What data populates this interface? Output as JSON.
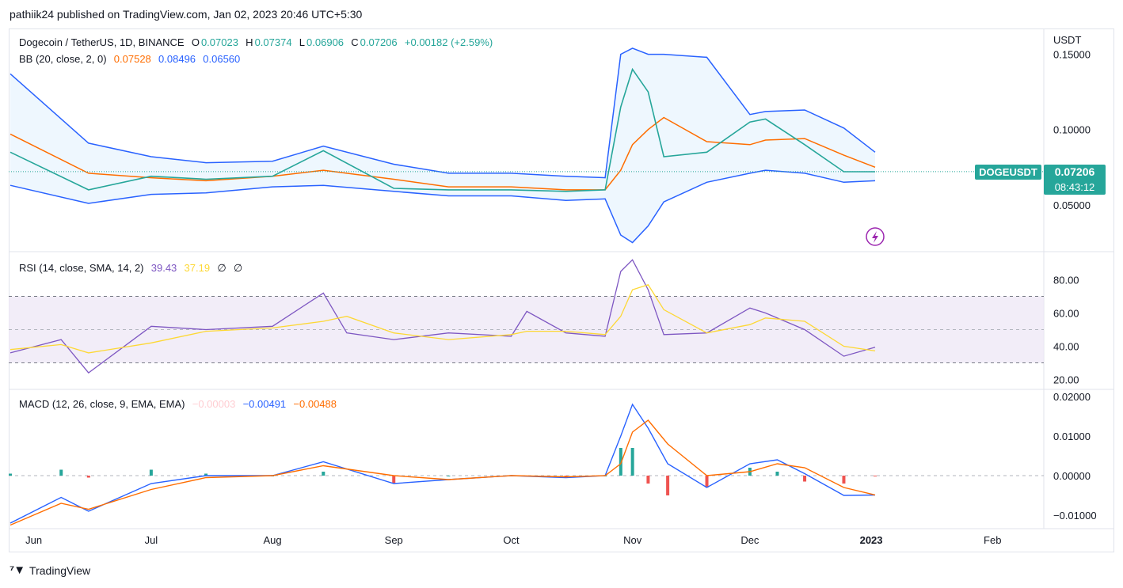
{
  "header": {
    "publisher": "pathiik24 published on TradingView.com, Jan 02, 2023 20:46 UTC+5:30"
  },
  "main_legend": {
    "symbol": "Dogecoin / TetherUS, 1D, BINANCE",
    "o_label": "O",
    "o": "0.07023",
    "h_label": "H",
    "h": "0.07374",
    "l_label": "L",
    "l": "0.06906",
    "c_label": "C",
    "c": "0.07206",
    "change": "+0.00182 (+2.59%)"
  },
  "bb_legend": {
    "label": "BB (20, close, 2, 0)",
    "mid": "0.07528",
    "upper": "0.08496",
    "lower": "0.06560"
  },
  "rsi_legend": {
    "label": "RSI (14, close, SMA, 14, 2)",
    "rsi": "39.43",
    "sma": "37.19",
    "a": "∅",
    "b": "∅"
  },
  "macd_legend": {
    "label": "MACD (12, 26, close, 9, EMA, EMA)",
    "hist": "−0.00003",
    "macd": "−0.00491",
    "signal": "−0.00488"
  },
  "price_axis": {
    "unit": "USDT",
    "ticks": [
      "0.15000",
      "0.10000",
      "0.05000"
    ]
  },
  "rsi_axis": {
    "ticks": [
      "80.00",
      "60.00",
      "40.00",
      "20.00"
    ]
  },
  "macd_axis": {
    "ticks": [
      "0.02000",
      "0.01000",
      "0.00000",
      "−0.01000"
    ]
  },
  "time_axis": {
    "labels": [
      "Jun",
      "Jul",
      "Aug",
      "Sep",
      "Oct",
      "Nov",
      "Dec",
      "2023",
      "Feb"
    ]
  },
  "price_tag": {
    "symbol": "DOGEUSDT",
    "price": "0.07206",
    "countdown": "08:43:12"
  },
  "footer": {
    "brand": "TradingView"
  },
  "colors": {
    "up": "#26a69a",
    "down": "#ef5350",
    "bb_band": "#2962ff",
    "bb_basis": "#ff6d00",
    "rsi": "#7e57c2",
    "rsi_sma": "#fdd835",
    "macd": "#2962ff",
    "signal": "#ff6d00"
  },
  "chart_data": [
    {
      "type": "line",
      "title": "Dogecoin / TetherUS, 1D, BINANCE",
      "ylabel": "USDT",
      "ylim": [
        0.02,
        0.165
      ],
      "x": [
        "2022-05-26",
        "2022-06-15",
        "2022-07-01",
        "2022-07-15",
        "2022-08-01",
        "2022-08-14",
        "2022-09-01",
        "2022-09-15",
        "2022-10-01",
        "2022-10-15",
        "2022-10-25",
        "2022-10-29",
        "2022-11-01",
        "2022-11-05",
        "2022-11-09",
        "2022-11-20",
        "2022-12-01",
        "2022-12-05",
        "2022-12-15",
        "2022-12-25",
        "2023-01-02"
      ],
      "series": [
        {
          "name": "close",
          "values": [
            0.085,
            0.06,
            0.069,
            0.067,
            0.069,
            0.086,
            0.061,
            0.06,
            0.06,
            0.059,
            0.06,
            0.115,
            0.14,
            0.125,
            0.082,
            0.085,
            0.105,
            0.107,
            0.09,
            0.072,
            0.072
          ]
        },
        {
          "name": "upper",
          "values": [
            0.137,
            0.091,
            0.082,
            0.078,
            0.079,
            0.089,
            0.077,
            0.071,
            0.071,
            0.069,
            0.068,
            0.15,
            0.154,
            0.15,
            0.15,
            0.148,
            0.11,
            0.112,
            0.113,
            0.101,
            0.085
          ]
        },
        {
          "name": "basis",
          "values": [
            0.097,
            0.071,
            0.068,
            0.066,
            0.069,
            0.073,
            0.067,
            0.062,
            0.062,
            0.06,
            0.06,
            0.073,
            0.09,
            0.1,
            0.108,
            0.092,
            0.09,
            0.093,
            0.094,
            0.083,
            0.075
          ]
        },
        {
          "name": "lower",
          "values": [
            0.063,
            0.051,
            0.057,
            0.058,
            0.062,
            0.063,
            0.059,
            0.056,
            0.056,
            0.053,
            0.054,
            0.03,
            0.025,
            0.036,
            0.052,
            0.065,
            0.071,
            0.073,
            0.071,
            0.065,
            0.066
          ]
        }
      ]
    },
    {
      "type": "line",
      "title": "RSI (14, close, SMA, 14, 2)",
      "ylim": [
        15,
        95
      ],
      "bands": [
        30,
        50,
        70
      ],
      "x": [
        "2022-05-26",
        "2022-06-08",
        "2022-06-15",
        "2022-07-01",
        "2022-07-15",
        "2022-08-01",
        "2022-08-14",
        "2022-08-20",
        "2022-09-01",
        "2022-09-15",
        "2022-10-01",
        "2022-10-05",
        "2022-10-15",
        "2022-10-25",
        "2022-10-29",
        "2022-11-01",
        "2022-11-05",
        "2022-11-09",
        "2022-11-20",
        "2022-12-01",
        "2022-12-05",
        "2022-12-15",
        "2022-12-25",
        "2023-01-02"
      ],
      "series": [
        {
          "name": "rsi",
          "values": [
            36,
            44,
            24,
            52,
            50,
            52,
            72,
            48,
            44,
            48,
            46,
            61,
            48,
            46,
            85,
            92,
            74,
            47,
            48,
            63,
            60,
            50,
            34,
            39.43
          ]
        },
        {
          "name": "sma",
          "values": [
            38,
            41,
            36,
            42,
            49,
            51,
            55,
            58,
            48,
            44,
            47,
            49,
            49,
            47,
            58,
            74,
            77,
            62,
            48,
            53,
            57,
            55,
            40,
            37.19
          ]
        }
      ]
    },
    {
      "type": "bar",
      "title": "MACD (12, 26, close, 9, EMA, EMA)",
      "ylim": [
        -0.013,
        0.021
      ],
      "x": [
        "2022-05-26",
        "2022-06-08",
        "2022-06-15",
        "2022-07-01",
        "2022-07-15",
        "2022-08-01",
        "2022-08-14",
        "2022-09-01",
        "2022-09-15",
        "2022-10-01",
        "2022-10-15",
        "2022-10-25",
        "2022-10-29",
        "2022-11-01",
        "2022-11-05",
        "2022-11-10",
        "2022-11-20",
        "2022-12-01",
        "2022-12-08",
        "2022-12-15",
        "2022-12-25",
        "2023-01-02"
      ],
      "series": [
        {
          "name": "macd",
          "values": [
            -0.012,
            -0.0055,
            -0.009,
            -0.002,
            0.0,
            0.0,
            0.0035,
            -0.002,
            -0.001,
            0.0,
            -0.0005,
            0.0,
            0.01,
            0.018,
            0.012,
            0.003,
            -0.003,
            0.003,
            0.004,
            0.0005,
            -0.005,
            -0.00491
          ]
        },
        {
          "name": "signal",
          "values": [
            -0.0125,
            -0.007,
            -0.0085,
            -0.0035,
            -0.0005,
            0.0,
            0.0025,
            0.0,
            -0.001,
            0.0,
            -0.0003,
            0.0,
            0.003,
            0.011,
            0.014,
            0.008,
            0.0,
            0.001,
            0.003,
            0.002,
            -0.003,
            -0.00488
          ]
        },
        {
          "name": "histogram",
          "values": [
            0.0005,
            0.0015,
            -0.0005,
            0.0015,
            0.0005,
            0.0,
            0.001,
            -0.002,
            0.0,
            0.0,
            -0.0002,
            0.0,
            0.007,
            0.007,
            -0.002,
            -0.005,
            -0.003,
            0.002,
            0.001,
            -0.0015,
            -0.002,
            -3e-05
          ]
        }
      ]
    }
  ]
}
